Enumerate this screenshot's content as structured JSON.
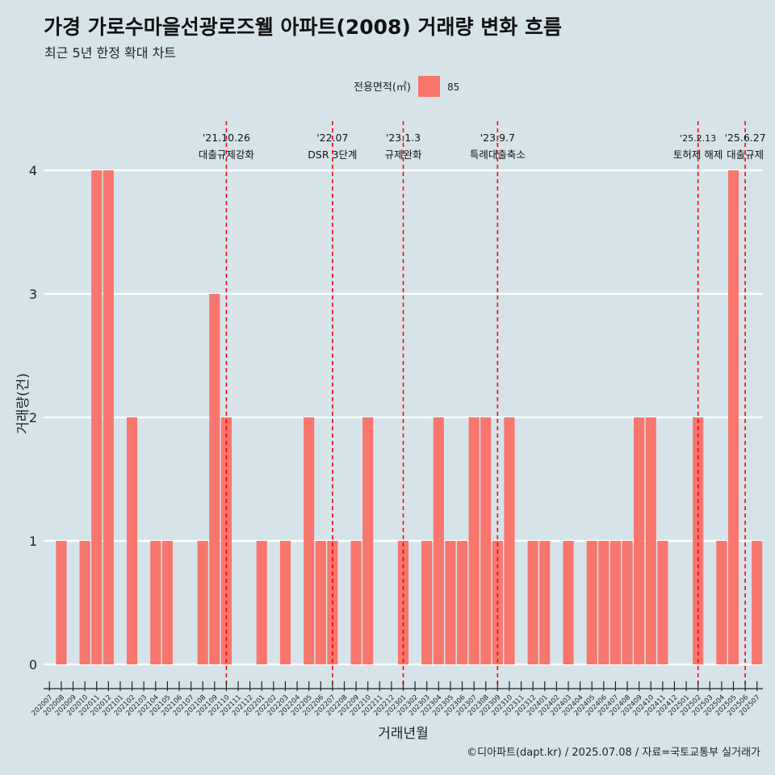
{
  "header": {
    "title": "가경 가로수마을선광로즈웰 아파트(2008) 거래량 변화 흐름",
    "subtitle": "최근 5년 한정 확대 차트"
  },
  "caption": "©디아파트(dapt.kr) / 2025.07.08 / 자료=국토교통부 실거래가",
  "chart_data": {
    "type": "bar",
    "xlabel": "거래년월",
    "ylabel": "거래량(건)",
    "ylim": [
      0,
      4
    ],
    "yticks": [
      0,
      1,
      2,
      3,
      4
    ],
    "grid": true,
    "legend": {
      "title": "전용면적(㎡)",
      "position": "top",
      "entries": [
        {
          "label": "85",
          "color": "#f8766d"
        }
      ]
    },
    "categories": [
      "202007",
      "202008",
      "202009",
      "202010",
      "202011",
      "202012",
      "202101",
      "202102",
      "202103",
      "202104",
      "202105",
      "202106",
      "202107",
      "202108",
      "202109",
      "202110",
      "202111",
      "202112",
      "202201",
      "202202",
      "202203",
      "202204",
      "202205",
      "202206",
      "202207",
      "202208",
      "202209",
      "202210",
      "202211",
      "202212",
      "202301",
      "202302",
      "202303",
      "202304",
      "202305",
      "202306",
      "202307",
      "202308",
      "202309",
      "202310",
      "202311",
      "202312",
      "202401",
      "202402",
      "202403",
      "202404",
      "202405",
      "202406",
      "202407",
      "202408",
      "202409",
      "202410",
      "202411",
      "202412",
      "202501",
      "202502",
      "202503",
      "202504",
      "202505",
      "202506",
      "202507"
    ],
    "series": [
      {
        "name": "85",
        "color": "#f8766d",
        "values": [
          0,
          1,
          0,
          1,
          4,
          4,
          0,
          2,
          0,
          1,
          1,
          0,
          0,
          1,
          3,
          2,
          0,
          0,
          1,
          0,
          1,
          0,
          2,
          1,
          1,
          0,
          1,
          2,
          0,
          0,
          1,
          0,
          1,
          2,
          1,
          1,
          2,
          2,
          1,
          2,
          0,
          1,
          1,
          0,
          1,
          0,
          1,
          1,
          1,
          1,
          2,
          2,
          1,
          0,
          0,
          2,
          0,
          1,
          4,
          0,
          1
        ]
      }
    ],
    "annotations": [
      {
        "x": "202110",
        "date": "'21.10.26",
        "label": "대출규제강화"
      },
      {
        "x": "202207",
        "date": "'22.07",
        "label": "DSR 3단계"
      },
      {
        "x": "202301",
        "date": "'23.1.3",
        "label": "규제완화"
      },
      {
        "x": "202309",
        "date": "'23.9.7",
        "label": "특례대출축소"
      },
      {
        "x": "202502",
        "date": "'25.2.13",
        "label": "토허제 해제"
      },
      {
        "x": "202506",
        "date": "'25.6.27",
        "label": "대출규제"
      }
    ],
    "annotation_color": "#ff0000"
  }
}
